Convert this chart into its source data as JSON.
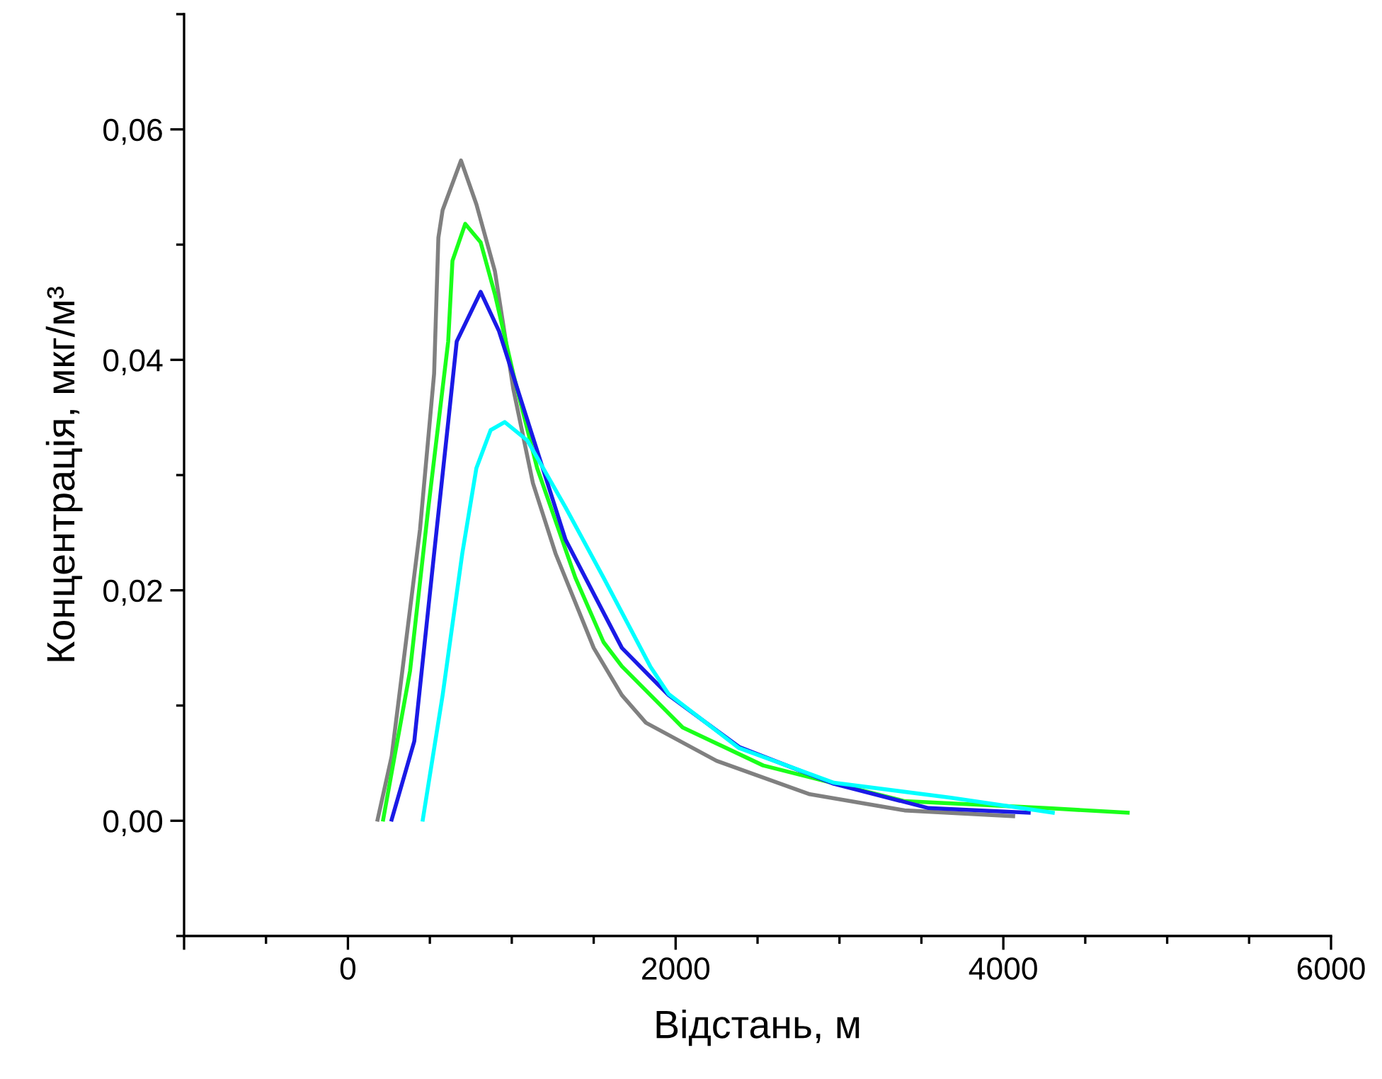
{
  "chart_data": {
    "type": "line",
    "xlabel": "Відстань, м",
    "ylabel": "Концентрація, мкг/м³",
    "xlim": [
      -1000,
      6000
    ],
    "xticks": [
      {
        "value": -1000,
        "label": null
      },
      0,
      2000,
      4000,
      6000
    ],
    "ylim": [
      -0.01,
      0.07
    ],
    "yticks": [
      {
        "value": 0,
        "label": "0,00"
      },
      {
        "value": 0.02,
        "label": "0,02"
      },
      {
        "value": 0.04,
        "label": "0,04"
      },
      {
        "value": 0.06,
        "label": "0,06"
      }
    ],
    "grid": false,
    "legend": false,
    "marker": "none",
    "line_style": "solid",
    "series": [
      {
        "color": "#808080",
        "x": [
          181,
          267,
          440,
          526,
          552,
          578,
          690,
          784,
          897,
          1009,
          1129,
          1267,
          1500,
          1672,
          1819,
          2250,
          2819,
          3397,
          4060
        ],
        "values": [
          0.0001,
          0.0056,
          0.0253,
          0.0388,
          0.0506,
          0.053,
          0.0573,
          0.0535,
          0.0477,
          0.0375,
          0.0293,
          0.0232,
          0.015,
          0.0109,
          0.0085,
          0.0052,
          0.0023,
          0.0009,
          0.0004
        ]
      },
      {
        "color": "#1aff1a",
        "x": [
          215,
          379,
          491,
          612,
          638,
          716,
          810,
          897,
          1009,
          1155,
          1388,
          1560,
          1672,
          2043,
          2534,
          3397,
          4259,
          4759
        ],
        "values": [
          0.0001,
          0.013,
          0.0272,
          0.0416,
          0.0486,
          0.0518,
          0.0502,
          0.0457,
          0.0388,
          0.0306,
          0.0211,
          0.0155,
          0.0134,
          0.0081,
          0.0048,
          0.0017,
          0.0011,
          0.0007
        ]
      },
      {
        "color": "#1a1ae6",
        "x": [
          267,
          405,
          526,
          612,
          664,
          810,
          922,
          1043,
          1328,
          1672,
          1845,
          1957,
          2388,
          2966,
          3543,
          4155
        ],
        "values": [
          0.0001,
          0.0069,
          0.0232,
          0.0346,
          0.0416,
          0.0459,
          0.0425,
          0.0371,
          0.0244,
          0.015,
          0.0125,
          0.0109,
          0.0064,
          0.0032,
          0.0011,
          0.0007
        ]
      },
      {
        "color": "#00ffff",
        "x": [
          457,
          578,
          698,
          784,
          871,
          957,
          1095,
          1328,
          1560,
          1845,
          1957,
          2388,
          2966,
          3681,
          4302
        ],
        "values": [
          0.0001,
          0.0109,
          0.0232,
          0.0306,
          0.0339,
          0.0346,
          0.033,
          0.0272,
          0.0211,
          0.0134,
          0.011,
          0.0063,
          0.0033,
          0.002,
          0.0007
        ]
      }
    ]
  }
}
